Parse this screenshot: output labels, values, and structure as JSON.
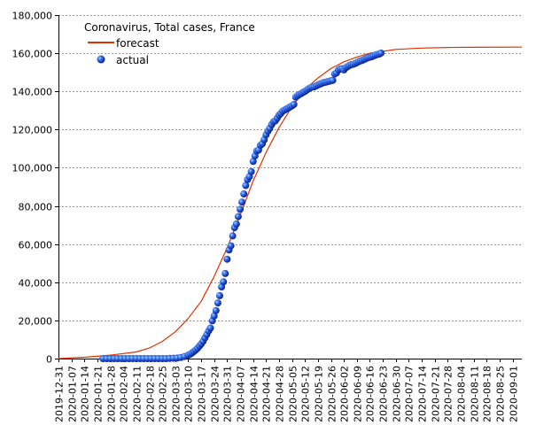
{
  "chart_data": {
    "type": "line",
    "title": "Coronavirus, Total cases, France",
    "xlabel": "",
    "ylabel": "",
    "x_axis": "date",
    "xlim": [
      "2019-12-31",
      "2020-09-06"
    ],
    "ylim": [
      0,
      180000
    ],
    "y_ticks": [
      0,
      20000,
      40000,
      60000,
      80000,
      100000,
      120000,
      140000,
      160000,
      180000
    ],
    "y_tick_labels": [
      "0",
      "20,000",
      "40,000",
      "60,000",
      "80,000",
      "100,000",
      "120,000",
      "140,000",
      "160,000",
      "180,000"
    ],
    "x_ticks": [
      "2019-12-31",
      "2020-01-07",
      "2020-01-14",
      "2020-01-21",
      "2020-01-28",
      "2020-02-04",
      "2020-02-11",
      "2020-02-18",
      "2020-02-25",
      "2020-03-03",
      "2020-03-10",
      "2020-03-17",
      "2020-03-24",
      "2020-03-31",
      "2020-04-07",
      "2020-04-14",
      "2020-04-21",
      "2020-04-28",
      "2020-05-05",
      "2020-05-12",
      "2020-05-19",
      "2020-05-26",
      "2020-06-02",
      "2020-06-09",
      "2020-06-16",
      "2020-06-23",
      "2020-06-30",
      "2020-07-07",
      "2020-07-14",
      "2020-07-21",
      "2020-07-28",
      "2020-08-04",
      "2020-08-11",
      "2020-08-18",
      "2020-08-25",
      "2020-09-01"
    ],
    "grid": "horizontal-dashed",
    "legend_position": "top-left",
    "colors": {
      "forecast": "#e03000",
      "actual": "#1a3fd0",
      "grid": "#999999"
    },
    "series": [
      {
        "name": "forecast",
        "kind": "line",
        "points": [
          [
            "2019-12-31",
            0
          ],
          [
            "2020-01-14",
            700
          ],
          [
            "2020-01-28",
            1800
          ],
          [
            "2020-02-11",
            3500
          ],
          [
            "2020-02-18",
            5500
          ],
          [
            "2020-02-25",
            9000
          ],
          [
            "2020-03-03",
            14000
          ],
          [
            "2020-03-10",
            21000
          ],
          [
            "2020-03-17",
            30000
          ],
          [
            "2020-03-24",
            43000
          ],
          [
            "2020-03-31",
            58000
          ],
          [
            "2020-04-07",
            75000
          ],
          [
            "2020-04-14",
            93000
          ],
          [
            "2020-04-21",
            108000
          ],
          [
            "2020-04-28",
            121000
          ],
          [
            "2020-05-05",
            132000
          ],
          [
            "2020-05-12",
            141000
          ],
          [
            "2020-05-19",
            147000
          ],
          [
            "2020-05-26",
            152000
          ],
          [
            "2020-06-02",
            155500
          ],
          [
            "2020-06-09",
            158000
          ],
          [
            "2020-06-16",
            160000
          ],
          [
            "2020-06-23",
            161000
          ],
          [
            "2020-06-30",
            162000
          ],
          [
            "2020-07-14",
            162700
          ],
          [
            "2020-07-28",
            163000
          ],
          [
            "2020-08-11",
            163100
          ],
          [
            "2020-09-06",
            163200
          ]
        ]
      },
      {
        "name": "actual",
        "kind": "scatter",
        "points": [
          [
            "2020-01-24",
            0
          ],
          [
            "2020-01-26",
            0
          ],
          [
            "2020-01-28",
            0
          ],
          [
            "2020-01-30",
            0
          ],
          [
            "2020-02-01",
            0
          ],
          [
            "2020-02-03",
            0
          ],
          [
            "2020-02-05",
            0
          ],
          [
            "2020-02-07",
            0
          ],
          [
            "2020-02-09",
            0
          ],
          [
            "2020-02-11",
            0
          ],
          [
            "2020-02-13",
            0
          ],
          [
            "2020-02-15",
            0
          ],
          [
            "2020-02-17",
            0
          ],
          [
            "2020-02-19",
            0
          ],
          [
            "2020-02-21",
            0
          ],
          [
            "2020-02-23",
            0
          ],
          [
            "2020-02-25",
            0
          ],
          [
            "2020-02-27",
            0
          ],
          [
            "2020-02-29",
            100
          ],
          [
            "2020-03-02",
            200
          ],
          [
            "2020-03-04",
            300
          ],
          [
            "2020-03-06",
            600
          ],
          [
            "2020-03-08",
            1100
          ],
          [
            "2020-03-10",
            1800
          ],
          [
            "2020-03-11",
            2300
          ],
          [
            "2020-03-12",
            2900
          ],
          [
            "2020-03-13",
            3700
          ],
          [
            "2020-03-14",
            4500
          ],
          [
            "2020-03-15",
            5400
          ],
          [
            "2020-03-16",
            6600
          ],
          [
            "2020-03-17",
            7700
          ],
          [
            "2020-03-18",
            9100
          ],
          [
            "2020-03-19",
            10900
          ],
          [
            "2020-03-20",
            12600
          ],
          [
            "2020-03-21",
            14500
          ],
          [
            "2020-03-22",
            16000
          ],
          [
            "2020-03-23",
            19800
          ],
          [
            "2020-03-24",
            22300
          ],
          [
            "2020-03-25",
            25200
          ],
          [
            "2020-03-26",
            29200
          ],
          [
            "2020-03-27",
            33000
          ],
          [
            "2020-03-28",
            37600
          ],
          [
            "2020-03-29",
            40200
          ],
          [
            "2020-03-30",
            44600
          ],
          [
            "2020-03-31",
            52100
          ],
          [
            "2020-04-01",
            56900
          ],
          [
            "2020-04-02",
            59100
          ],
          [
            "2020-04-03",
            64300
          ],
          [
            "2020-04-04",
            68600
          ],
          [
            "2020-04-05",
            70500
          ],
          [
            "2020-04-06",
            74400
          ],
          [
            "2020-04-07",
            78200
          ],
          [
            "2020-04-08",
            82000
          ],
          [
            "2020-04-09",
            86300
          ],
          [
            "2020-04-10",
            90700
          ],
          [
            "2020-04-11",
            93800
          ],
          [
            "2020-04-12",
            95400
          ],
          [
            "2020-04-13",
            98000
          ],
          [
            "2020-04-14",
            103300
          ],
          [
            "2020-04-15",
            106200
          ],
          [
            "2020-04-16",
            108800
          ],
          [
            "2020-04-17",
            109300
          ],
          [
            "2020-04-18",
            111800
          ],
          [
            "2020-04-19",
            112600
          ],
          [
            "2020-04-20",
            114700
          ],
          [
            "2020-04-21",
            117300
          ],
          [
            "2020-04-22",
            119200
          ],
          [
            "2020-04-23",
            120600
          ],
          [
            "2020-04-24",
            122600
          ],
          [
            "2020-04-25",
            124100
          ],
          [
            "2020-04-26",
            124600
          ],
          [
            "2020-04-27",
            126000
          ],
          [
            "2020-04-28",
            127600
          ],
          [
            "2020-04-29",
            128500
          ],
          [
            "2020-04-30",
            129600
          ],
          [
            "2020-05-01",
            130200
          ],
          [
            "2020-05-02",
            130800
          ],
          [
            "2020-05-03",
            131300
          ],
          [
            "2020-05-04",
            131900
          ],
          [
            "2020-05-05",
            132400
          ],
          [
            "2020-05-06",
            133200
          ],
          [
            "2020-05-07",
            137000
          ],
          [
            "2020-05-08",
            137800
          ],
          [
            "2020-05-09",
            138400
          ],
          [
            "2020-05-10",
            138900
          ],
          [
            "2020-05-11",
            139500
          ],
          [
            "2020-05-12",
            140000
          ],
          [
            "2020-05-13",
            140700
          ],
          [
            "2020-05-14",
            141400
          ],
          [
            "2020-05-15",
            141900
          ],
          [
            "2020-05-16",
            142300
          ],
          [
            "2020-05-17",
            142400
          ],
          [
            "2020-05-18",
            142900
          ],
          [
            "2020-05-19",
            143400
          ],
          [
            "2020-05-20",
            143800
          ],
          [
            "2020-05-21",
            144200
          ],
          [
            "2020-05-22",
            144600
          ],
          [
            "2020-05-23",
            144800
          ],
          [
            "2020-05-24",
            145000
          ],
          [
            "2020-05-25",
            145300
          ],
          [
            "2020-05-26",
            145600
          ],
          [
            "2020-05-27",
            145800
          ],
          [
            "2020-05-28",
            149100
          ],
          [
            "2020-05-29",
            149700
          ],
          [
            "2020-05-30",
            151300
          ],
          [
            "2020-05-31",
            151800
          ],
          [
            "2020-06-01",
            151900
          ],
          [
            "2020-06-02",
            151300
          ],
          [
            "2020-06-03",
            152400
          ],
          [
            "2020-06-04",
            153000
          ],
          [
            "2020-06-05",
            153600
          ],
          [
            "2020-06-06",
            154000
          ],
          [
            "2020-06-07",
            154200
          ],
          [
            "2020-06-08",
            154600
          ],
          [
            "2020-06-09",
            155100
          ],
          [
            "2020-06-10",
            155600
          ],
          [
            "2020-06-11",
            156000
          ],
          [
            "2020-06-12",
            156300
          ],
          [
            "2020-06-13",
            156800
          ],
          [
            "2020-06-14",
            157200
          ],
          [
            "2020-06-15",
            157700
          ],
          [
            "2020-06-16",
            157900
          ],
          [
            "2020-06-17",
            158200
          ],
          [
            "2020-06-18",
            158600
          ],
          [
            "2020-06-19",
            159000
          ],
          [
            "2020-06-20",
            159300
          ],
          [
            "2020-06-21",
            159600
          ],
          [
            "2020-06-22",
            160100
          ]
        ]
      }
    ]
  }
}
